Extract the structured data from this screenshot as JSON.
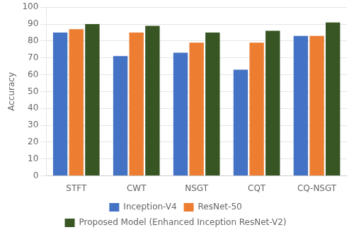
{
  "chart_data": {
    "type": "bar",
    "categories": [
      "STFT",
      "CWT",
      "NSGT",
      "CQT",
      "CQ-NSGT"
    ],
    "series": [
      {
        "name": "Inception-V4",
        "color": "#4472c4",
        "values": [
          85,
          71,
          73,
          63,
          83
        ]
      },
      {
        "name": "ResNet-50",
        "color": "#ed7d31",
        "values": [
          87,
          85,
          79,
          79,
          83
        ]
      },
      {
        "name": "Proposed Model (Enhanced Inception ResNet-V2)",
        "color": "#375623",
        "values": [
          90,
          89,
          85,
          86,
          91
        ]
      }
    ],
    "ylabel": "Accuracy",
    "ylim": [
      0,
      100
    ],
    "yticks": [
      0,
      10,
      20,
      30,
      40,
      50,
      60,
      70,
      80,
      90,
      100
    ],
    "grid": true,
    "legend": "bottom"
  }
}
